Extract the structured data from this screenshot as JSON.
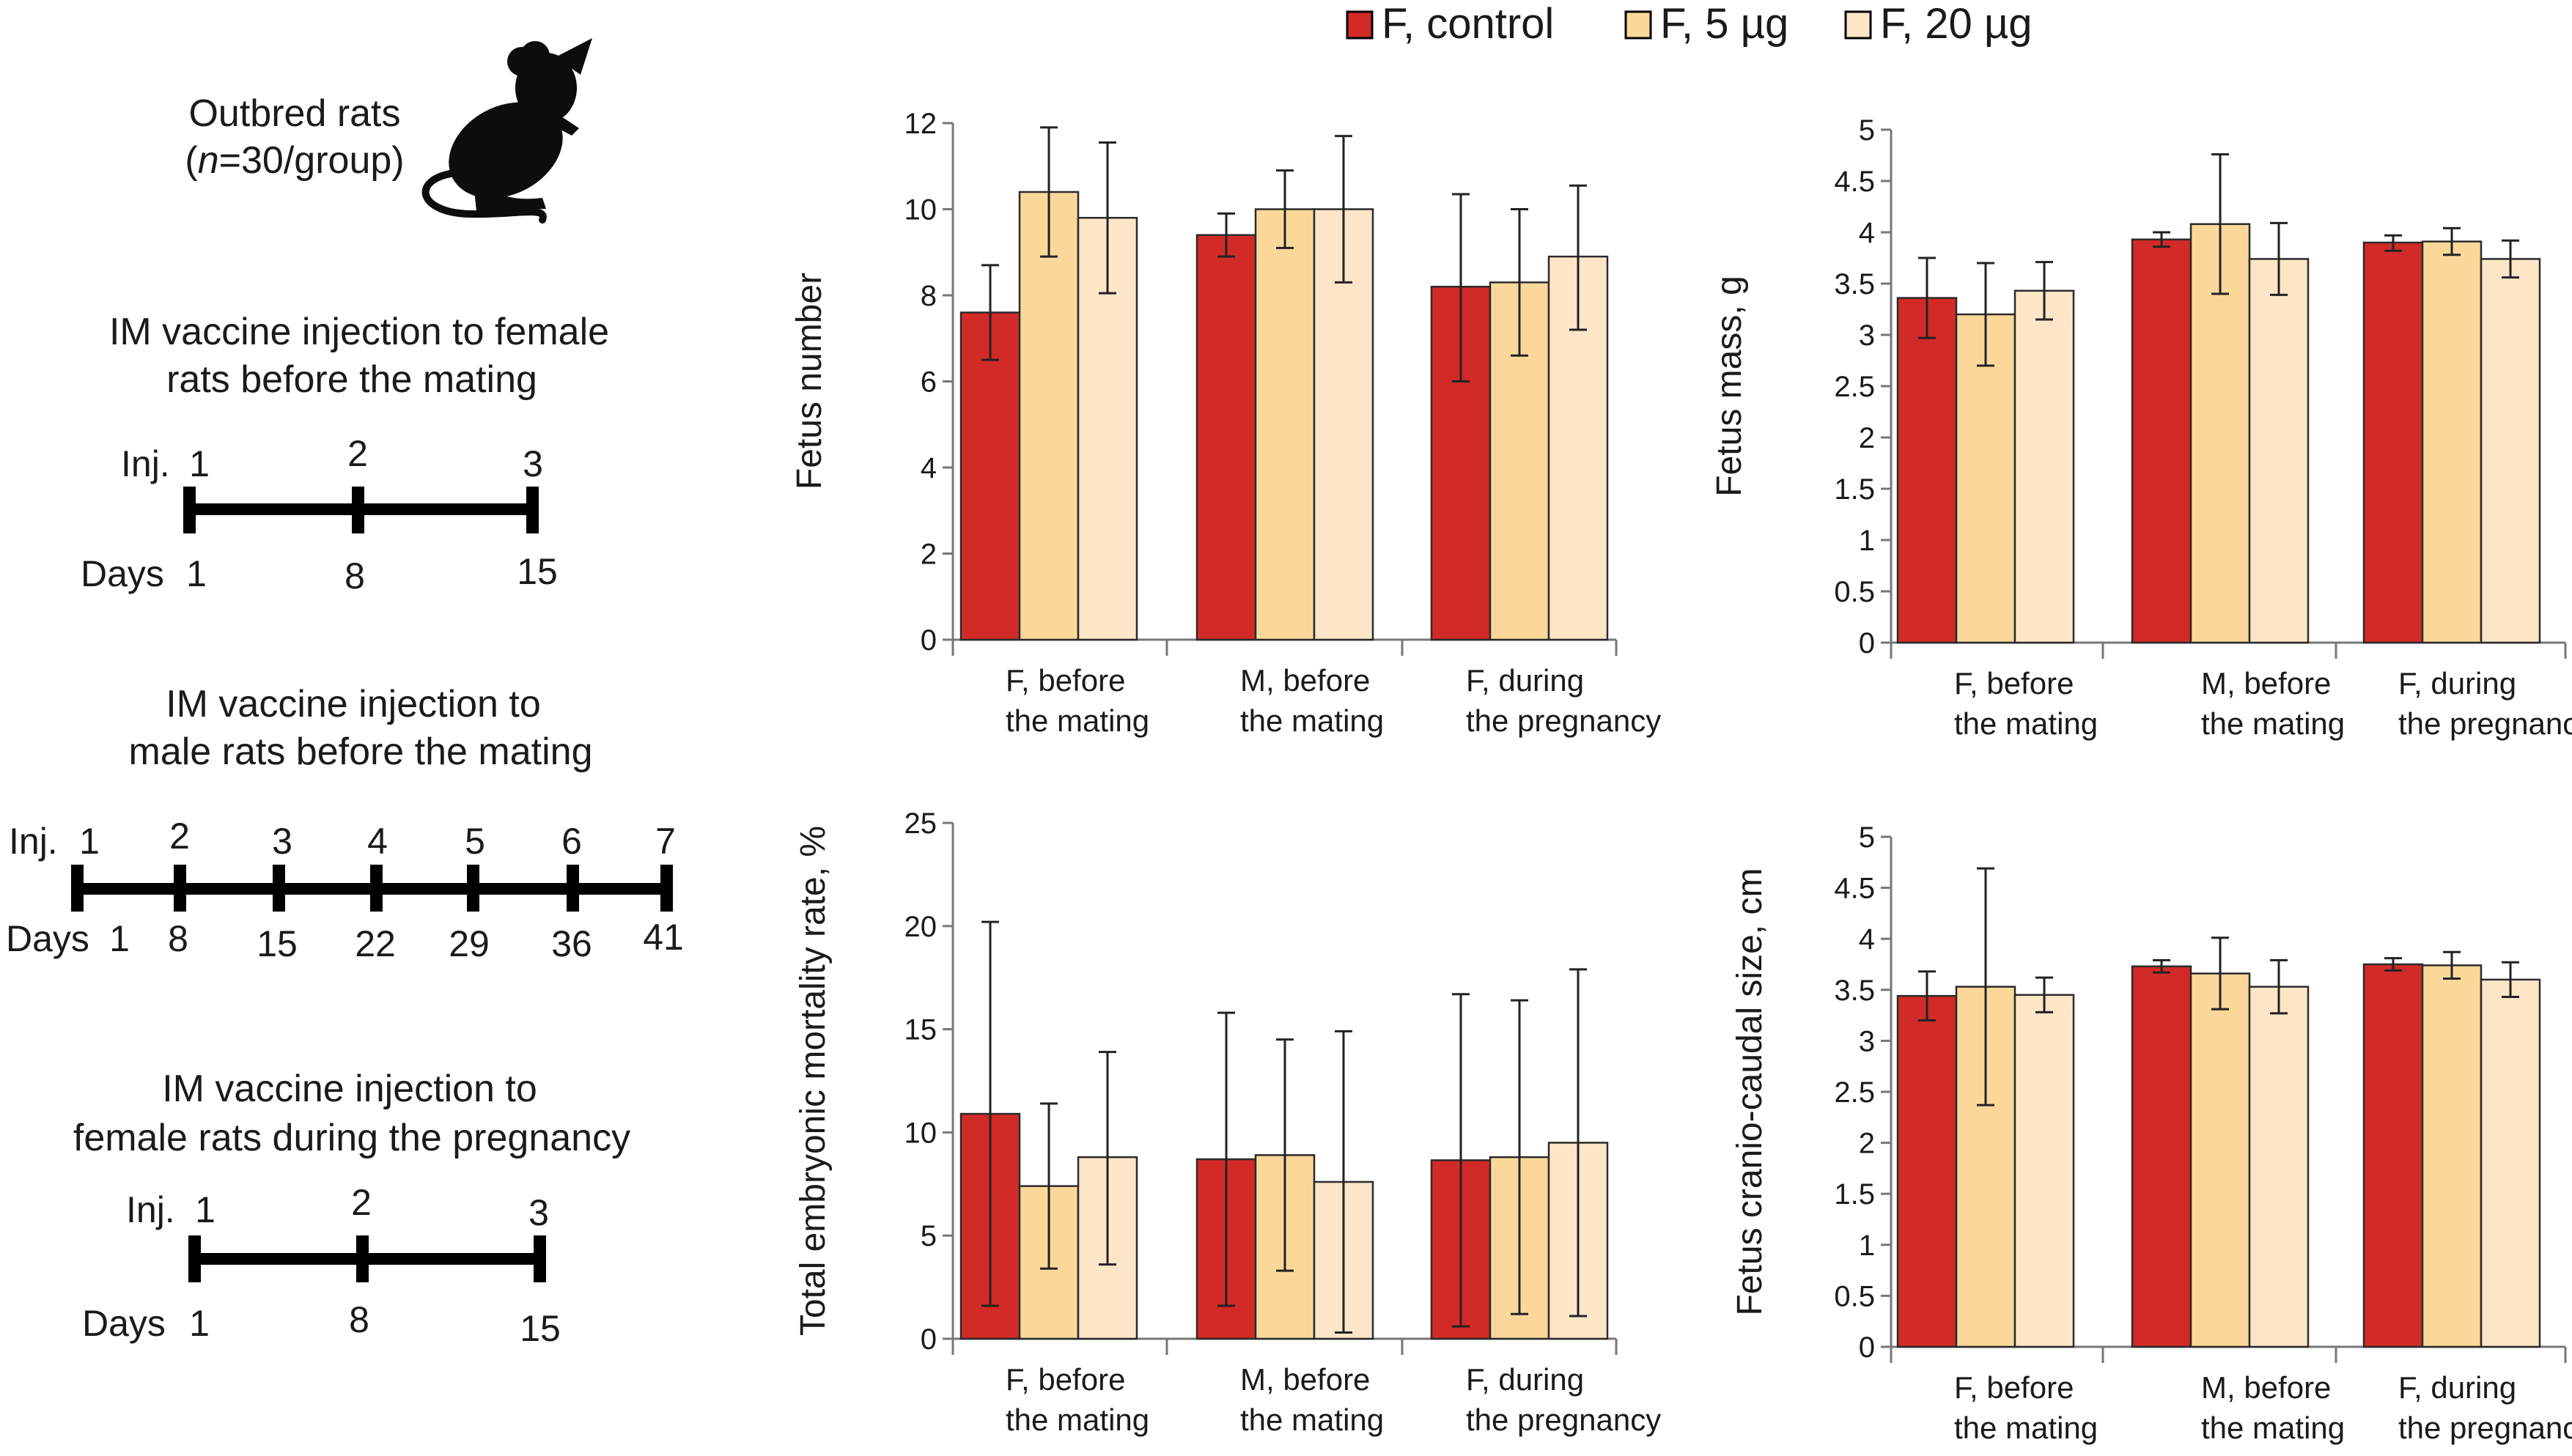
{
  "legend": [
    {
      "label": "F, control",
      "color": "#d22b27"
    },
    {
      "label": "F, 5 µg",
      "color": "#fbd89a"
    },
    {
      "label": "F, 20 µg",
      "color": "#fde5c8"
    }
  ],
  "schematic": {
    "rats_label": "Outbred rats",
    "rats_n_italic": "n",
    "rats_n_rest": "=30/group)",
    "rats_open_paren": "(",
    "protocols": [
      {
        "title_line1": "IM vaccine injection to female",
        "title_line2": "rats before the mating",
        "inj_label": "Inj.",
        "days_label": "Days",
        "inj": [
          "1",
          "2",
          "3"
        ],
        "days": [
          "1",
          "8",
          "15"
        ]
      },
      {
        "title_line1": "IM vaccine injection to",
        "title_line2": "male rats before the mating",
        "inj_label": "Inj.",
        "days_label": "Days",
        "inj": [
          "1",
          "2",
          "3",
          "4",
          "5",
          "6",
          "7"
        ],
        "days": [
          "1",
          "8",
          "15",
          "22",
          "29",
          "36",
          "41"
        ]
      },
      {
        "title_line1": "IM vaccine injection to",
        "title_line2": "female rats during the pregnancy",
        "inj_label": "Inj.",
        "days_label": "Days",
        "inj": [
          "1",
          "2",
          "3"
        ],
        "days": [
          "1",
          "8",
          "15"
        ]
      }
    ]
  },
  "chart_data": [
    {
      "type": "bar",
      "ylabel": "Fetus number",
      "ylim": [
        0,
        12
      ],
      "yticks": [
        "0",
        "2",
        "4",
        "6",
        "8",
        "10",
        "12"
      ],
      "categories": [
        [
          "F, before",
          "the mating"
        ],
        [
          "M, before",
          "the mating"
        ],
        [
          "F, during",
          "the pregnancy"
        ]
      ],
      "series": [
        {
          "name": "F, control",
          "values": [
            7.6,
            9.4,
            8.2
          ],
          "err_low": [
            6.5,
            8.9,
            6.0
          ],
          "err_high": [
            8.7,
            9.9,
            10.35
          ]
        },
        {
          "name": "F, 5 µg",
          "values": [
            10.4,
            10.0,
            8.3
          ],
          "err_low": [
            8.9,
            9.1,
            6.6
          ],
          "err_high": [
            11.9,
            10.9,
            10.0
          ]
        },
        {
          "name": "F, 20 µg",
          "values": [
            9.8,
            10.0,
            8.9
          ],
          "err_low": [
            8.05,
            8.3,
            7.2
          ],
          "err_high": [
            11.55,
            11.7,
            10.55
          ]
        }
      ]
    },
    {
      "type": "bar",
      "ylabel": "Fetus mass, g",
      "ylim": [
        0,
        5
      ],
      "yticks": [
        "0",
        "0.5",
        "1",
        "1.5",
        "2",
        "2.5",
        "3",
        "3.5",
        "4",
        "4.5",
        "5"
      ],
      "categories": [
        [
          "F, before",
          "the mating"
        ],
        [
          "M, before",
          "the mating"
        ],
        [
          "F, during",
          "the pregnancy"
        ]
      ],
      "series": [
        {
          "name": "F, control",
          "values": [
            3.36,
            3.93,
            3.9
          ],
          "err_low": [
            2.97,
            3.86,
            3.82
          ],
          "err_high": [
            3.75,
            4.0,
            3.97
          ]
        },
        {
          "name": "F, 5 µg",
          "values": [
            3.2,
            4.08,
            3.91
          ],
          "err_low": [
            2.7,
            3.4,
            3.78
          ],
          "err_high": [
            3.7,
            4.76,
            4.04
          ]
        },
        {
          "name": "F, 20 µg",
          "values": [
            3.43,
            3.74,
            3.74
          ],
          "err_low": [
            3.15,
            3.39,
            3.56
          ],
          "err_high": [
            3.71,
            4.09,
            3.92
          ]
        }
      ]
    },
    {
      "type": "bar",
      "ylabel": "Total embryonic mortality rate, %",
      "ylim": [
        0,
        25
      ],
      "yticks": [
        "0",
        "5",
        "10",
        "15",
        "20",
        "25"
      ],
      "categories": [
        [
          "F, before",
          "the mating"
        ],
        [
          "M, before",
          "the mating"
        ],
        [
          "F, during",
          "the pregnancy"
        ]
      ],
      "series": [
        {
          "name": "F, control",
          "values": [
            10.9,
            8.7,
            8.65
          ],
          "err_low": [
            1.6,
            1.6,
            0.6
          ],
          "err_high": [
            20.2,
            15.8,
            16.7
          ]
        },
        {
          "name": "F, 5 µg",
          "values": [
            7.4,
            8.9,
            8.8
          ],
          "err_low": [
            3.4,
            3.3,
            1.2
          ],
          "err_high": [
            11.4,
            14.5,
            16.4
          ]
        },
        {
          "name": "F, 20 µg",
          "values": [
            8.8,
            7.6,
            9.5
          ],
          "err_low": [
            3.6,
            0.3,
            1.1
          ],
          "err_high": [
            13.9,
            14.9,
            17.9
          ]
        }
      ]
    },
    {
      "type": "bar",
      "ylabel": "Fetus cranio-caudal size, cm",
      "ylim": [
        0,
        5
      ],
      "yticks": [
        "0",
        "0.5",
        "1",
        "1.5",
        "2",
        "2.5",
        "3",
        "3.5",
        "4",
        "4.5",
        "5"
      ],
      "categories": [
        [
          "F, before",
          "the mating"
        ],
        [
          "M, before",
          "the mating"
        ],
        [
          "F, during",
          "the pregnancy"
        ]
      ],
      "series": [
        {
          "name": "F, control",
          "values": [
            3.44,
            3.73,
            3.75
          ],
          "err_low": [
            3.2,
            3.67,
            3.69
          ],
          "err_high": [
            3.68,
            3.79,
            3.81
          ]
        },
        {
          "name": "F, 5 µg",
          "values": [
            3.53,
            3.66,
            3.74
          ],
          "err_low": [
            2.37,
            3.31,
            3.61
          ],
          "err_high": [
            4.69,
            4.01,
            3.87
          ]
        },
        {
          "name": "F, 20 µg",
          "values": [
            3.45,
            3.53,
            3.6
          ],
          "err_low": [
            3.28,
            3.27,
            3.43
          ],
          "err_high": [
            3.62,
            3.79,
            3.77
          ]
        }
      ]
    }
  ]
}
